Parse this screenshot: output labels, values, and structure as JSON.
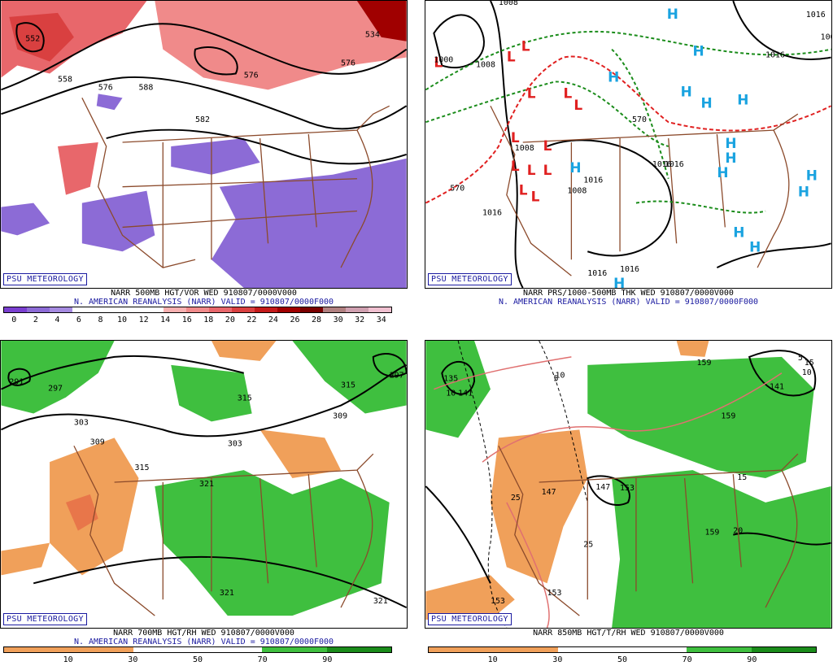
{
  "badge": "PSU METEOROLOGY",
  "colors": {
    "caption_line2": "#1a1aa0",
    "border": "#8b4a2b",
    "vort_low": "#8c6bd6",
    "vort_high": "#e8676b",
    "rh_dry": "#f0a05a",
    "rh_moist": "#3fbf3f",
    "high_marker": "#1aa3e0",
    "low_marker": "#e02020",
    "thickness_dash": "#1a8c1a"
  },
  "panels": [
    {
      "line1": "NARR 500MB HGT/VOR WED 910807/0000V000",
      "line2": "N. AMERICAN REANALYSIS (NARR) VALID = 910807/0000F000",
      "scale_colors": [
        "#7a3fd0",
        "#8c6bd6",
        "#a58ae0",
        "#ffffff",
        "#ffffff",
        "#ffffff",
        "#ffffff",
        "#f7b0b0",
        "#f08a8a",
        "#e8676b",
        "#d94040",
        "#c41a1a",
        "#a00000",
        "#7a0000",
        "#b08080",
        "#d0a0b0",
        "#f0c0d0"
      ],
      "scale_ticks": [
        "0",
        "2",
        "4",
        "6",
        "8",
        "10",
        "12",
        "14",
        "16",
        "18",
        "20",
        "22",
        "24",
        "26",
        "28",
        "30",
        "32",
        "34"
      ],
      "labels": [
        "552",
        "558",
        "576",
        "576",
        "576",
        "582",
        "588",
        "534"
      ]
    },
    {
      "line1": "NARR PRS/1000-500MB THK WED 910807/0000V000",
      "line2": "N. AMERICAN REANALYSIS (NARR) VALID = 910807/0000F000",
      "labels": [
        "1008",
        "1000",
        "1008",
        "1016",
        "1016",
        "1016",
        "1016",
        "1008",
        "1008",
        "1016",
        "1016",
        "570",
        "570",
        "1008",
        "1016",
        "1016"
      ]
    },
    {
      "line1": "NARR 700MB HGT/RH WED 910807/0000V000",
      "line2": "N. AMERICAN REANALYSIS (NARR) VALID = 910807/0000F000",
      "scale_colors": [
        "#f0a05a",
        "#f0a05a",
        "#ffffff",
        "#ffffff",
        "#3fbf3f",
        "#1a8c1a"
      ],
      "scale_ticks": [
        "10",
        "30",
        "50",
        "70",
        "90"
      ],
      "labels": [
        "291",
        "297",
        "303",
        "309",
        "315",
        "321",
        "315",
        "315",
        "321",
        "321",
        "309",
        "303",
        "297"
      ]
    },
    {
      "line1": "NARR 850MB HGT/T/RH WED 910807/0000V000",
      "line2": "",
      "scale_colors": [
        "#f0a05a",
        "#f0a05a",
        "#ffffff",
        "#ffffff",
        "#3fbf3f",
        "#1a8c1a"
      ],
      "scale_ticks": [
        "10",
        "30",
        "50",
        "70",
        "90"
      ],
      "labels": [
        "135",
        "141",
        "147",
        "153",
        "153",
        "159",
        "159",
        "159",
        "153",
        "147",
        "141",
        "5",
        "15",
        "10",
        "10",
        "10",
        "25",
        "25",
        "15",
        "20",
        "5"
      ]
    }
  ]
}
